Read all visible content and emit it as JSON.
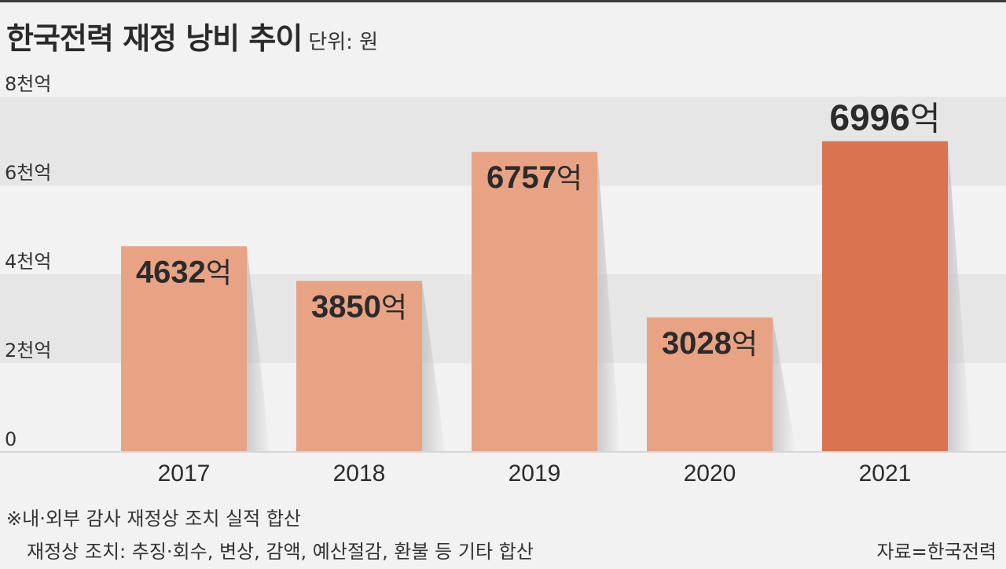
{
  "chart_data": {
    "type": "bar",
    "title": "한국전력 재정 낭비 추이",
    "unit_label": "단위: 원",
    "categories": [
      "2017",
      "2018",
      "2019",
      "2020",
      "2021"
    ],
    "values": [
      4632,
      3850,
      6757,
      3028,
      6996
    ],
    "value_labels": [
      "4632억",
      "3850억",
      "6757억",
      "3028억",
      "6996억"
    ],
    "y_ticks": [
      0,
      2000,
      4000,
      6000,
      8000
    ],
    "y_tick_labels": [
      "0",
      "2천억",
      "4천억",
      "6천억",
      "8천억"
    ],
    "ylim": [
      0,
      8000
    ],
    "xlabel": "",
    "ylabel": "",
    "colors": {
      "bar": "#e8a384",
      "highlight": "#d97350",
      "band": "#e6e6e6",
      "background": "#f2f2f2"
    },
    "highlight_index": 4
  },
  "footnote": {
    "line1": "※내·외부 감사 재정상 조치 실적 합산",
    "line2": "재정상 조치: 추징·회수, 변상, 감액, 예산절감, 환불 등 기타 합산"
  },
  "source": "자료=한국전력"
}
